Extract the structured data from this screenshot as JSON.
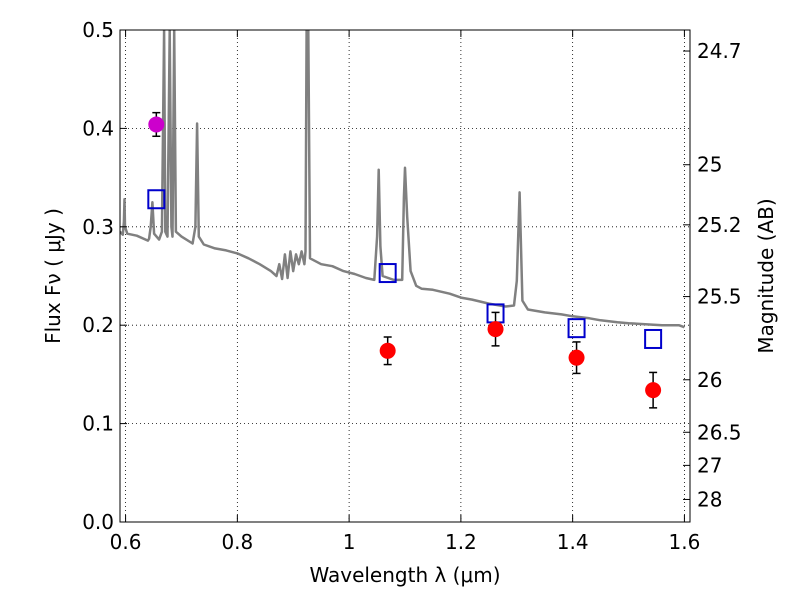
{
  "chart_data": {
    "type": "scatter",
    "xlabel": "Wavelength  λ (μm)",
    "ylabel": "Flux  Fν  ( μJy )",
    "y2label": "Magnitude (AB)",
    "xlim": [
      0.59,
      1.61
    ],
    "ylim": [
      0.0,
      0.5
    ],
    "grid": true,
    "x_ticks": [
      0.6,
      0.8,
      1.0,
      1.2,
      1.4,
      1.6
    ],
    "x_tick_labels": [
      "0.6",
      "0.8",
      "1",
      "1.2",
      "1.4",
      "1.6"
    ],
    "y_ticks": [
      0.0,
      0.1,
      0.2,
      0.3,
      0.4,
      0.5
    ],
    "y_tick_labels": [
      "0.0",
      "0.1",
      "0.2",
      "0.3",
      "0.4",
      "0.5"
    ],
    "y2_ticks": [
      {
        "mag": 24.7,
        "label": "24.7"
      },
      {
        "mag": 25.0,
        "label": "25"
      },
      {
        "mag": 25.2,
        "label": "25.2"
      },
      {
        "mag": 25.5,
        "label": "25.5"
      },
      {
        "mag": 26.0,
        "label": "26"
      },
      {
        "mag": 26.5,
        "label": "26.5"
      },
      {
        "mag": 27.0,
        "label": "27"
      },
      {
        "mag": 28.0,
        "label": "28"
      }
    ],
    "series": [
      {
        "type": "line",
        "color": "#808080",
        "points": [
          [
            0.59,
            0.295
          ],
          [
            0.595,
            0.292
          ],
          [
            0.597,
            0.305
          ],
          [
            0.598,
            0.328
          ],
          [
            0.599,
            0.3
          ],
          [
            0.603,
            0.293
          ],
          [
            0.62,
            0.291
          ],
          [
            0.64,
            0.286
          ],
          [
            0.642,
            0.288
          ],
          [
            0.645,
            0.3
          ],
          [
            0.648,
            0.325
          ],
          [
            0.651,
            0.293
          ],
          [
            0.66,
            0.287
          ],
          [
            0.665,
            0.295
          ],
          [
            0.669,
            0.5
          ],
          [
            0.671,
            0.295
          ],
          [
            0.675,
            0.29
          ],
          [
            0.679,
            0.5
          ],
          [
            0.682,
            0.3
          ],
          [
            0.684,
            0.29
          ],
          [
            0.687,
            0.5
          ],
          [
            0.69,
            0.295
          ],
          [
            0.7,
            0.29
          ],
          [
            0.72,
            0.283
          ],
          [
            0.725,
            0.3
          ],
          [
            0.728,
            0.405
          ],
          [
            0.731,
            0.29
          ],
          [
            0.74,
            0.282
          ],
          [
            0.76,
            0.278
          ],
          [
            0.78,
            0.276
          ],
          [
            0.8,
            0.273
          ],
          [
            0.82,
            0.268
          ],
          [
            0.84,
            0.262
          ],
          [
            0.86,
            0.255
          ],
          [
            0.87,
            0.25
          ],
          [
            0.875,
            0.262
          ],
          [
            0.88,
            0.247
          ],
          [
            0.885,
            0.272
          ],
          [
            0.89,
            0.248
          ],
          [
            0.895,
            0.275
          ],
          [
            0.9,
            0.255
          ],
          [
            0.905,
            0.272
          ],
          [
            0.91,
            0.262
          ],
          [
            0.915,
            0.275
          ],
          [
            0.92,
            0.262
          ],
          [
            0.922,
            0.275
          ],
          [
            0.924,
            0.5
          ],
          [
            0.927,
            0.5
          ],
          [
            0.93,
            0.268
          ],
          [
            0.95,
            0.262
          ],
          [
            0.97,
            0.26
          ],
          [
            0.99,
            0.255
          ],
          [
            1.01,
            0.252
          ],
          [
            1.03,
            0.248
          ],
          [
            1.045,
            0.246
          ],
          [
            1.05,
            0.29
          ],
          [
            1.053,
            0.358
          ],
          [
            1.056,
            0.28
          ],
          [
            1.06,
            0.25
          ],
          [
            1.08,
            0.246
          ],
          [
            1.095,
            0.246
          ],
          [
            1.098,
            0.33
          ],
          [
            1.1,
            0.36
          ],
          [
            1.104,
            0.31
          ],
          [
            1.11,
            0.255
          ],
          [
            1.12,
            0.24
          ],
          [
            1.13,
            0.237
          ],
          [
            1.15,
            0.236
          ],
          [
            1.18,
            0.232
          ],
          [
            1.2,
            0.228
          ],
          [
            1.22,
            0.226
          ],
          [
            1.25,
            0.222
          ],
          [
            1.28,
            0.219
          ],
          [
            1.295,
            0.22
          ],
          [
            1.3,
            0.245
          ],
          [
            1.305,
            0.335
          ],
          [
            1.31,
            0.225
          ],
          [
            1.32,
            0.216
          ],
          [
            1.35,
            0.213
          ],
          [
            1.38,
            0.211
          ],
          [
            1.4,
            0.209
          ],
          [
            1.43,
            0.207
          ],
          [
            1.45,
            0.205
          ],
          [
            1.48,
            0.203
          ],
          [
            1.5,
            0.202
          ],
          [
            1.53,
            0.201
          ],
          [
            1.56,
            0.2
          ],
          [
            1.59,
            0.2
          ],
          [
            1.6,
            0.198
          ]
        ]
      },
      {
        "type": "open-square",
        "color": "#0000cc",
        "points": [
          {
            "x": 0.655,
            "y": 0.328
          },
          {
            "x": 1.069,
            "y": 0.253
          },
          {
            "x": 1.262,
            "y": 0.212
          },
          {
            "x": 1.407,
            "y": 0.197
          },
          {
            "x": 1.544,
            "y": 0.186
          }
        ]
      },
      {
        "type": "errorbar-point",
        "color": "#ff0000",
        "points": [
          {
            "x": 1.069,
            "y": 0.174,
            "err": 0.014
          },
          {
            "x": 1.262,
            "y": 0.196,
            "err": 0.017
          },
          {
            "x": 1.407,
            "y": 0.167,
            "err": 0.016
          },
          {
            "x": 1.544,
            "y": 0.134,
            "err": 0.018
          }
        ]
      },
      {
        "type": "errorbar-point",
        "color": "#cc00cc",
        "points": [
          {
            "x": 0.655,
            "y": 0.404,
            "err": 0.012
          }
        ]
      }
    ]
  }
}
